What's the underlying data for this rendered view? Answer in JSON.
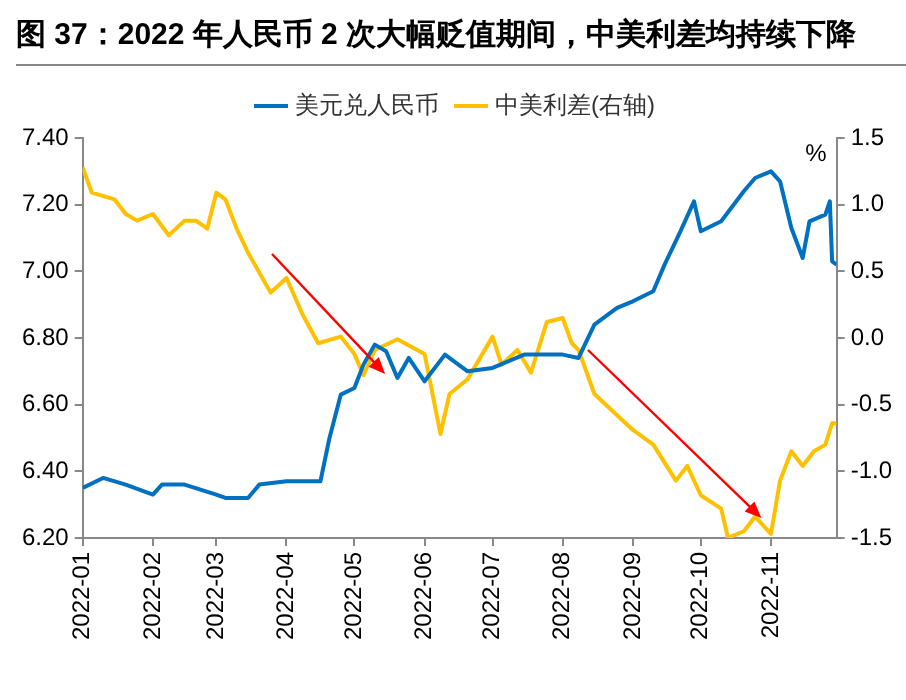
{
  "chart_data": {
    "type": "line",
    "title": "图 37：2022 年人民币 2 次大幅贬值期间，中美利差均持续下降",
    "y2label": "%",
    "legend": "top",
    "grid": false,
    "marker": "none",
    "line_style": "solid",
    "xlim": [
      "2022-01-01",
      "2022-11-30"
    ],
    "xticks": [
      "2022-01",
      "2022-02",
      "2022-03",
      "2022-04",
      "2022-05",
      "2022-06",
      "2022-07",
      "2022-08",
      "2022-09",
      "2022-10",
      "2022-11"
    ],
    "ylim": [
      6.2,
      7.4
    ],
    "yticks": [
      {
        "value": 6.2,
        "label": "6.20"
      },
      {
        "value": 6.4,
        "label": "6.40"
      },
      {
        "value": 6.6,
        "label": "6.60"
      },
      {
        "value": 6.8,
        "label": "6.80"
      },
      {
        "value": 7.0,
        "label": "7.00"
      },
      {
        "value": 7.2,
        "label": "7.20"
      },
      {
        "value": 7.4,
        "label": "7.40"
      }
    ],
    "y2lim": [
      -1.5,
      1.5
    ],
    "y2ticks": [
      -1.5,
      {
        "value": -1.0,
        "label": "-1.0"
      },
      -0.5,
      {
        "value": 0.0,
        "label": "0.0"
      },
      0.5,
      {
        "value": 1.0,
        "label": "1.0"
      },
      1.5
    ],
    "series": [
      {
        "name": "美元兑人民币",
        "color": "#0070c0",
        "axis": "y",
        "x": [
          "2022-01-01",
          "2022-01-10",
          "2022-01-20",
          "2022-02-01",
          "2022-02-05",
          "2022-02-15",
          "2022-03-01",
          "2022-03-05",
          "2022-03-15",
          "2022-03-20",
          "2022-04-01",
          "2022-04-10",
          "2022-04-16",
          "2022-04-20",
          "2022-04-25",
          "2022-05-01",
          "2022-05-05",
          "2022-05-10",
          "2022-05-15",
          "2022-05-20",
          "2022-05-25",
          "2022-06-01",
          "2022-06-10",
          "2022-06-20",
          "2022-07-01",
          "2022-07-15",
          "2022-08-01",
          "2022-08-08",
          "2022-08-15",
          "2022-08-25",
          "2022-09-01",
          "2022-09-10",
          "2022-09-15",
          "2022-09-22",
          "2022-09-28",
          "2022-10-01",
          "2022-10-10",
          "2022-10-20",
          "2022-10-25",
          "2022-11-01",
          "2022-11-05",
          "2022-11-10",
          "2022-11-15",
          "2022-11-18",
          "2022-11-25",
          "2022-11-27",
          "2022-11-28",
          "2022-11-30"
        ],
        "values": [
          6.35,
          6.38,
          6.36,
          6.33,
          6.36,
          6.36,
          6.33,
          6.32,
          6.32,
          6.36,
          6.37,
          6.37,
          6.37,
          6.5,
          6.63,
          6.65,
          6.72,
          6.78,
          6.76,
          6.68,
          6.74,
          6.67,
          6.75,
          6.7,
          6.71,
          6.75,
          6.75,
          6.74,
          6.84,
          6.89,
          6.91,
          6.94,
          7.02,
          7.12,
          7.21,
          7.12,
          7.15,
          7.24,
          7.28,
          7.3,
          7.27,
          7.13,
          7.04,
          7.15,
          7.17,
          7.21,
          7.03,
          7.02
        ]
      },
      {
        "name": "中美利差(右轴)",
        "color": "#ffc000",
        "axis": "y2",
        "x": [
          "2022-01-01",
          "2022-01-05",
          "2022-01-15",
          "2022-01-20",
          "2022-01-25",
          "2022-02-01",
          "2022-02-08",
          "2022-02-15",
          "2022-02-20",
          "2022-02-25",
          "2022-03-01",
          "2022-03-05",
          "2022-03-10",
          "2022-03-15",
          "2022-03-25",
          "2022-04-01",
          "2022-04-08",
          "2022-04-15",
          "2022-04-25",
          "2022-05-01",
          "2022-05-05",
          "2022-05-10",
          "2022-05-20",
          "2022-06-01",
          "2022-06-08",
          "2022-06-12",
          "2022-06-20",
          "2022-07-01",
          "2022-07-05",
          "2022-07-12",
          "2022-07-18",
          "2022-07-25",
          "2022-08-01",
          "2022-08-05",
          "2022-08-08",
          "2022-08-15",
          "2022-08-25",
          "2022-09-01",
          "2022-09-10",
          "2022-09-20",
          "2022-09-25",
          "2022-10-01",
          "2022-10-10",
          "2022-10-13",
          "2022-10-20",
          "2022-10-25",
          "2022-11-01",
          "2022-11-05",
          "2022-11-10",
          "2022-11-15",
          "2022-11-20",
          "2022-11-25",
          "2022-11-28",
          "2022-11-30"
        ],
        "values": [
          1.28,
          1.09,
          1.04,
          0.93,
          0.88,
          0.93,
          0.77,
          0.88,
          0.88,
          0.82,
          1.09,
          1.04,
          0.82,
          0.64,
          0.34,
          0.45,
          0.18,
          -0.04,
          0.01,
          -0.12,
          -0.28,
          -0.09,
          -0.01,
          -0.12,
          -0.72,
          -0.42,
          -0.31,
          0.01,
          -0.2,
          -0.09,
          -0.26,
          0.12,
          0.15,
          -0.04,
          -0.09,
          -0.42,
          -0.58,
          -0.69,
          -0.8,
          -1.07,
          -0.96,
          -1.18,
          -1.28,
          -1.5,
          -1.45,
          -1.34,
          -1.47,
          -1.07,
          -0.85,
          -0.96,
          -0.85,
          -0.8,
          -0.64,
          -0.64
        ]
      }
    ]
  }
}
